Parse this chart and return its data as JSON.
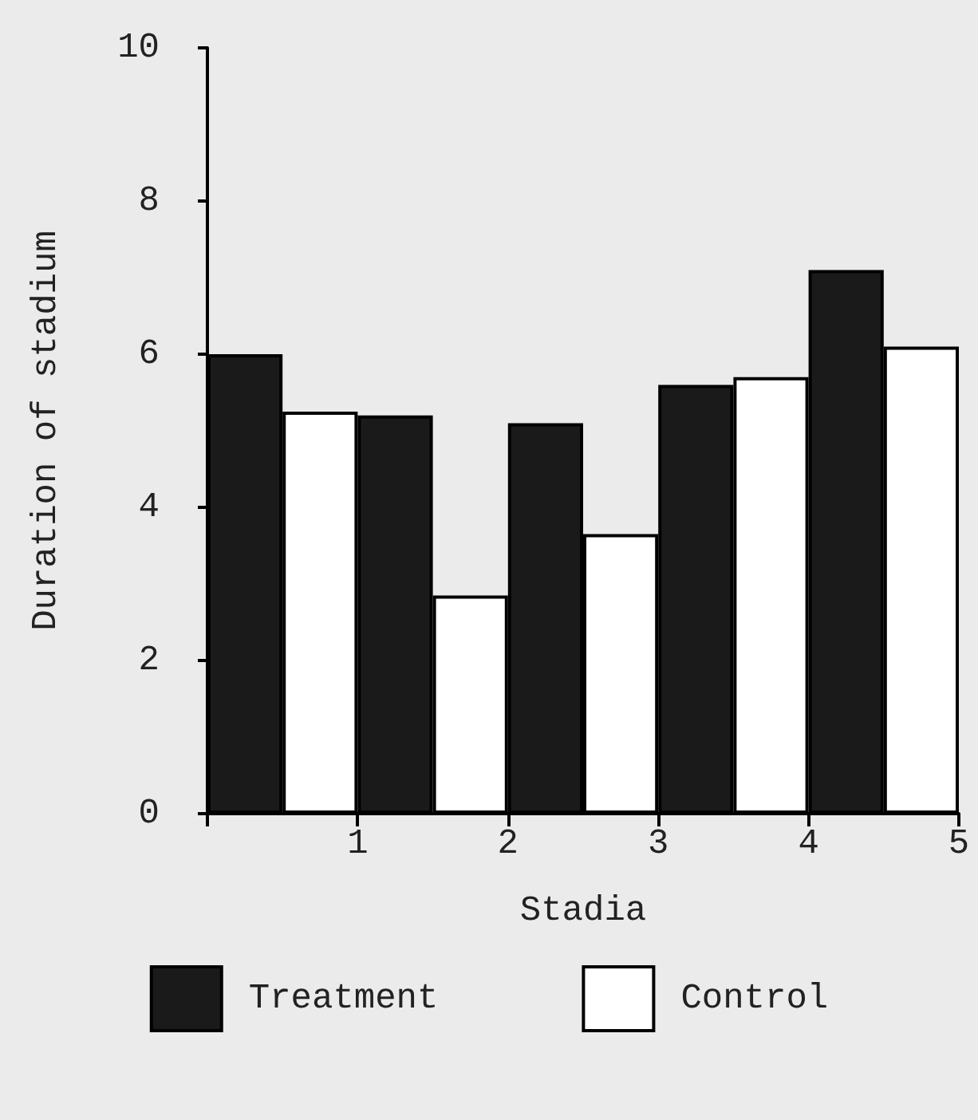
{
  "chart_data": {
    "type": "bar",
    "xlabel": "Stadia",
    "ylabel": "Duration of stadium",
    "series": [
      {
        "name": "Treatment",
        "color": "#1a1a1a",
        "x": [
          0.25,
          1.25,
          2.25,
          3.25,
          4.25
        ],
        "values": [
          6.0,
          5.2,
          5.1,
          5.6,
          7.1
        ]
      },
      {
        "name": "Control",
        "color": "#ffffff",
        "x": [
          0.75,
          1.75,
          2.75,
          3.75,
          4.75
        ],
        "values": [
          5.25,
          2.85,
          3.65,
          5.7,
          6.1
        ]
      }
    ],
    "xlim": [
      0,
      5
    ],
    "xticks": [
      {
        "value": 0,
        "label": null
      },
      1,
      2,
      3,
      4,
      5
    ],
    "ylim": [
      0,
      10
    ],
    "yticks": [
      0,
      2,
      4,
      6,
      8,
      10
    ],
    "grid": false,
    "legend": "bottom"
  }
}
